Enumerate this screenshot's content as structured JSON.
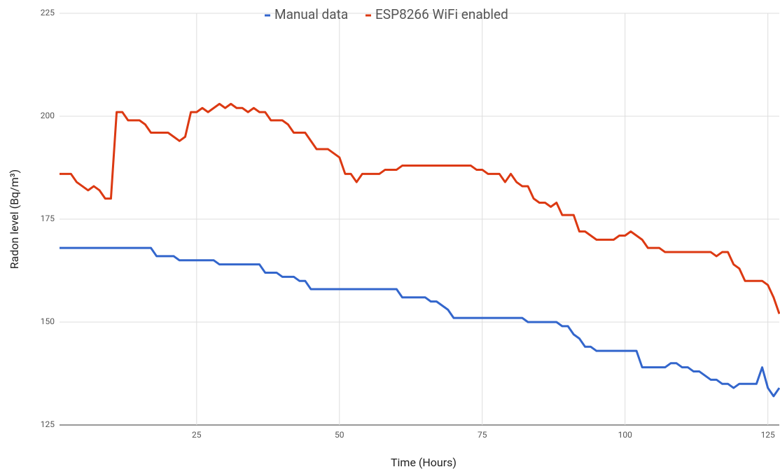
{
  "chart_data": {
    "type": "line",
    "x_label": "Time (Hours)",
    "y_label": "Radon level (Bq/m³)",
    "xlim": [
      1,
      127
    ],
    "xticks": [
      25,
      50,
      75,
      100,
      125
    ],
    "ylim": [
      125,
      225
    ],
    "yticks": [
      125,
      150,
      175,
      200,
      225
    ],
    "grid": true,
    "legend": "top",
    "x": [
      1,
      2,
      3,
      4,
      5,
      6,
      7,
      8,
      9,
      10,
      11,
      12,
      13,
      14,
      15,
      16,
      17,
      18,
      19,
      20,
      21,
      22,
      23,
      24,
      25,
      26,
      27,
      28,
      29,
      30,
      31,
      32,
      33,
      34,
      35,
      36,
      37,
      38,
      39,
      40,
      41,
      42,
      43,
      44,
      45,
      46,
      47,
      48,
      49,
      50,
      51,
      52,
      53,
      54,
      55,
      56,
      57,
      58,
      59,
      60,
      61,
      62,
      63,
      64,
      65,
      66,
      67,
      68,
      69,
      70,
      71,
      72,
      73,
      74,
      75,
      76,
      77,
      78,
      79,
      80,
      81,
      82,
      83,
      84,
      85,
      86,
      87,
      88,
      89,
      90,
      91,
      92,
      93,
      94,
      95,
      96,
      97,
      98,
      99,
      100,
      101,
      102,
      103,
      104,
      105,
      106,
      107,
      108,
      109,
      110,
      111,
      112,
      113,
      114,
      115,
      116,
      117,
      118,
      119,
      120,
      121,
      122,
      123,
      124,
      125,
      126,
      127
    ],
    "series": [
      {
        "name": "Manual data",
        "color": "#3366cc",
        "values": [
          168,
          168,
          168,
          168,
          168,
          168,
          168,
          168,
          168,
          168,
          168,
          168,
          168,
          168,
          168,
          168,
          168,
          166,
          166,
          166,
          166,
          165,
          165,
          165,
          165,
          165,
          165,
          165,
          164,
          164,
          164,
          164,
          164,
          164,
          164,
          164,
          162,
          162,
          162,
          161,
          161,
          161,
          160,
          160,
          158,
          158,
          158,
          158,
          158,
          158,
          158,
          158,
          158,
          158,
          158,
          158,
          158,
          158,
          158,
          158,
          156,
          156,
          156,
          156,
          156,
          155,
          155,
          154,
          153,
          151,
          151,
          151,
          151,
          151,
          151,
          151,
          151,
          151,
          151,
          151,
          151,
          151,
          150,
          150,
          150,
          150,
          150,
          150,
          149,
          149,
          147,
          146,
          144,
          144,
          143,
          143,
          143,
          143,
          143,
          143,
          143,
          143,
          139,
          139,
          139,
          139,
          139,
          140,
          140,
          139,
          139,
          138,
          138,
          137,
          136,
          136,
          135,
          135,
          134,
          135,
          135,
          135,
          135,
          139,
          134,
          132,
          134
        ]
      },
      {
        "name": "ESP8266 WiFi enabled",
        "color": "#dc3912",
        "values": [
          186,
          186,
          186,
          184,
          183,
          182,
          183,
          182,
          180,
          180,
          201,
          201,
          199,
          199,
          199,
          198,
          196,
          196,
          196,
          196,
          195,
          194,
          195,
          201,
          201,
          202,
          201,
          202,
          203,
          202,
          203,
          202,
          202,
          201,
          202,
          201,
          201,
          199,
          199,
          199,
          198,
          196,
          196,
          196,
          194,
          192,
          192,
          192,
          191,
          190,
          186,
          186,
          184,
          186,
          186,
          186,
          186,
          187,
          187,
          187,
          188,
          188,
          188,
          188,
          188,
          188,
          188,
          188,
          188,
          188,
          188,
          188,
          188,
          187,
          187,
          186,
          186,
          186,
          184,
          186,
          184,
          183,
          183,
          180,
          179,
          179,
          178,
          179,
          176,
          176,
          176,
          172,
          172,
          171,
          170,
          170,
          170,
          170,
          171,
          171,
          172,
          171,
          170,
          168,
          168,
          168,
          167,
          167,
          167,
          167,
          167,
          167,
          167,
          167,
          167,
          166,
          167,
          167,
          164,
          163,
          160,
          160,
          160,
          160,
          159,
          156,
          152
        ]
      }
    ]
  }
}
